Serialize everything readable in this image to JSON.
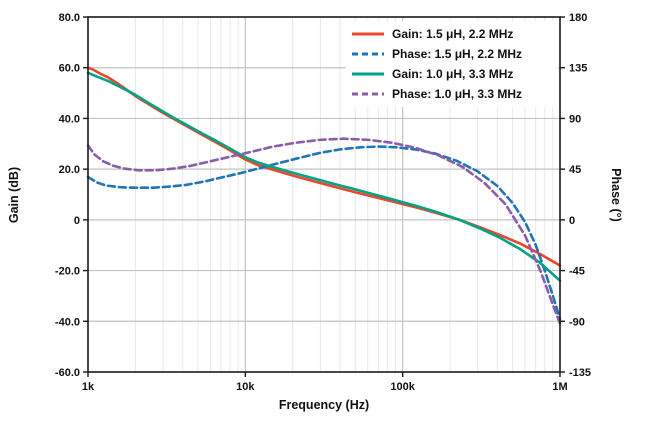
{
  "chart_data": {
    "type": "line",
    "title": "",
    "xlabel": "Frequency (Hz)",
    "ylabel_left": "Gain (dB)",
    "ylabel_right": "Phase (°)",
    "x_scale": "log",
    "xlim": [
      1000,
      1000000
    ],
    "ylim_left": [
      -60,
      80
    ],
    "ylim_right": [
      -135,
      180
    ],
    "grid": {
      "major": true,
      "minor": true
    },
    "legend_position": "top-right",
    "x_ticks": [
      {
        "v": 1000,
        "label": "1k"
      },
      {
        "v": 10000,
        "label": "10k"
      },
      {
        "v": 100000,
        "label": "100k"
      },
      {
        "v": 1000000,
        "label": "1M"
      }
    ],
    "y_ticks_left": [
      {
        "v": 80,
        "label": "80.0"
      },
      {
        "v": 60,
        "label": "60.0"
      },
      {
        "v": 40,
        "label": "40.0"
      },
      {
        "v": 20,
        "label": "20.0"
      },
      {
        "v": 0,
        "label": "0"
      },
      {
        "v": -20,
        "label": "-20.0"
      },
      {
        "v": -40,
        "label": "-40.0"
      },
      {
        "v": -60,
        "label": "-60.0"
      }
    ],
    "y_ticks_right": [
      {
        "v": 180,
        "label": "180"
      },
      {
        "v": 135,
        "label": "135"
      },
      {
        "v": 90,
        "label": "90"
      },
      {
        "v": 45,
        "label": "45"
      },
      {
        "v": 0,
        "label": "0"
      },
      {
        "v": -45,
        "label": "-45"
      },
      {
        "v": -90,
        "label": "-90"
      },
      {
        "v": -135,
        "label": "-135"
      }
    ],
    "series": [
      {
        "name": "Gain: 1.5 μH, 2.2 MHz",
        "axis": "left",
        "unit": "dB",
        "color": "#e8472b",
        "dash": "solid",
        "points": [
          [
            1000,
            60
          ],
          [
            1080,
            59.2
          ],
          [
            1200,
            57.6
          ],
          [
            1350,
            56.1
          ],
          [
            1500,
            54.3
          ],
          [
            1700,
            52
          ],
          [
            2000,
            48.8
          ],
          [
            2400,
            45.8
          ],
          [
            2900,
            42.7
          ],
          [
            3500,
            39.8
          ],
          [
            4300,
            36.7
          ],
          [
            5300,
            33.6
          ],
          [
            6500,
            30.6
          ],
          [
            8000,
            27.4
          ],
          [
            10000,
            23.8
          ],
          [
            12000,
            21.6
          ],
          [
            15000,
            19.8
          ],
          [
            20000,
            17.5
          ],
          [
            27000,
            15.3
          ],
          [
            36000,
            13.2
          ],
          [
            50000,
            10.9
          ],
          [
            68000,
            8.8
          ],
          [
            92000,
            6.8
          ],
          [
            125000,
            4.7
          ],
          [
            170000,
            2.4
          ],
          [
            230000,
            0
          ],
          [
            310000,
            -2.9
          ],
          [
            420000,
            -6.1
          ],
          [
            560000,
            -9.4
          ],
          [
            750000,
            -13.5
          ],
          [
            1000000,
            -18
          ]
        ]
      },
      {
        "name": "Phase: 1.5 μH, 2.2 MHz",
        "axis": "right",
        "unit": "deg",
        "color": "#2175b5",
        "dash": "dashed",
        "points": [
          [
            1000,
            38
          ],
          [
            1150,
            33
          ],
          [
            1300,
            30.5
          ],
          [
            1600,
            29
          ],
          [
            2000,
            28.5
          ],
          [
            2600,
            28.5
          ],
          [
            3300,
            29.5
          ],
          [
            4200,
            31
          ],
          [
            5500,
            34
          ],
          [
            7000,
            37.5
          ],
          [
            9000,
            41
          ],
          [
            12000,
            45.5
          ],
          [
            16000,
            50
          ],
          [
            22000,
            55
          ],
          [
            30000,
            59.5
          ],
          [
            40000,
            62.5
          ],
          [
            55000,
            64.5
          ],
          [
            70000,
            65
          ],
          [
            90000,
            64.5
          ],
          [
            120000,
            62.5
          ],
          [
            160000,
            59
          ],
          [
            220000,
            52.5
          ],
          [
            300000,
            43
          ],
          [
            400000,
            30
          ],
          [
            500000,
            15
          ],
          [
            600000,
            -2
          ],
          [
            700000,
            -22
          ],
          [
            800000,
            -45
          ],
          [
            900000,
            -67
          ],
          [
            1000000,
            -88
          ]
        ]
      },
      {
        "name": "Gain: 1.0 μH, 3.3 MHz",
        "axis": "left",
        "unit": "dB",
        "color": "#00a385",
        "dash": "solid",
        "points": [
          [
            1000,
            58
          ],
          [
            1150,
            56.4
          ],
          [
            1350,
            54.7
          ],
          [
            1600,
            52.4
          ],
          [
            2000,
            49.3
          ],
          [
            2400,
            46.3
          ],
          [
            2900,
            43.2
          ],
          [
            3500,
            40.3
          ],
          [
            4300,
            37.2
          ],
          [
            5300,
            34.1
          ],
          [
            6500,
            31.2
          ],
          [
            8000,
            28.1
          ],
          [
            10000,
            24.7
          ],
          [
            12000,
            22.6
          ],
          [
            15000,
            20.8
          ],
          [
            20000,
            18.6
          ],
          [
            27000,
            16.4
          ],
          [
            36000,
            14.3
          ],
          [
            50000,
            12
          ],
          [
            68000,
            9.8
          ],
          [
            92000,
            7.6
          ],
          [
            125000,
            5.3
          ],
          [
            170000,
            2.8
          ],
          [
            230000,
            0
          ],
          [
            310000,
            -3.4
          ],
          [
            420000,
            -7.2
          ],
          [
            560000,
            -11.6
          ],
          [
            750000,
            -17
          ],
          [
            1000000,
            -24
          ]
        ]
      },
      {
        "name": "Phase: 1.0 μH, 3.3 MHz",
        "axis": "right",
        "unit": "deg",
        "color": "#8a5da8",
        "dash": "dashed",
        "points": [
          [
            1000,
            66
          ],
          [
            1100,
            58
          ],
          [
            1250,
            52
          ],
          [
            1450,
            48
          ],
          [
            1700,
            45.5
          ],
          [
            2100,
            44
          ],
          [
            2700,
            44
          ],
          [
            3500,
            45.5
          ],
          [
            4500,
            48
          ],
          [
            6000,
            52
          ],
          [
            8000,
            56
          ],
          [
            11000,
            60.5
          ],
          [
            15000,
            65
          ],
          [
            21000,
            68.5
          ],
          [
            30000,
            71
          ],
          [
            42000,
            72
          ],
          [
            60000,
            71
          ],
          [
            85000,
            68.5
          ],
          [
            120000,
            64
          ],
          [
            170000,
            57
          ],
          [
            240000,
            47
          ],
          [
            330000,
            33
          ],
          [
            450000,
            14
          ],
          [
            600000,
            -14
          ],
          [
            750000,
            -45
          ],
          [
            900000,
            -75
          ],
          [
            1000000,
            -92
          ]
        ]
      }
    ]
  }
}
